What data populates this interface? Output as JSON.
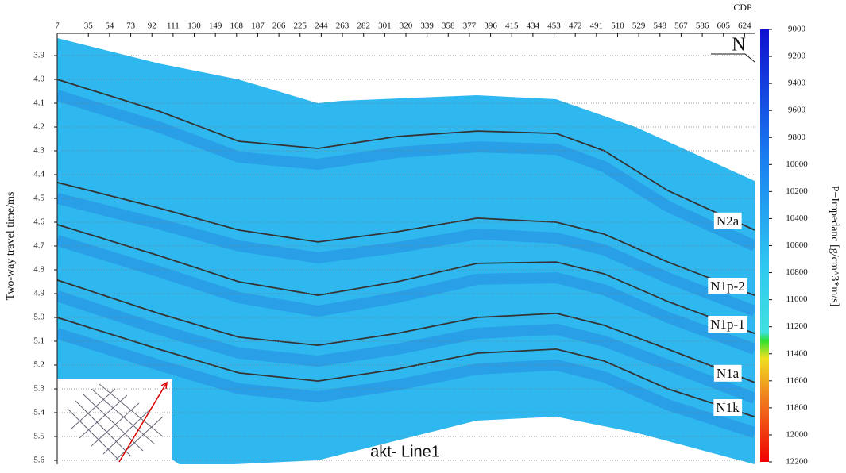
{
  "chart_data": {
    "type": "seismic-section",
    "x_label": "CDP",
    "y_label": "Two-way travel time/ms",
    "colorbar_label": "P−Impedanc [g/cm^3*m/s]",
    "annotations": [
      "akt- Line1",
      "N"
    ],
    "xlim": [
      7,
      633
    ],
    "xticks": [
      7,
      35,
      54,
      73,
      92,
      111,
      130,
      149,
      168,
      187,
      206,
      225,
      244,
      263,
      282,
      301,
      320,
      339,
      358,
      377,
      396,
      415,
      434,
      453,
      472,
      491,
      510,
      529,
      548,
      567,
      586,
      605,
      624
    ],
    "ylim": [
      3.8,
      5.62
    ],
    "y_inverted": true,
    "yticks": [
      3.9,
      {
        "value": 4,
        "label": "4.0"
      },
      4.1,
      4.2,
      4.3,
      4.4,
      4.5,
      4.6,
      4.7,
      4.8,
      4.9,
      {
        "value": 5,
        "label": "5.0"
      },
      5.1,
      5.2,
      5.3,
      5.4,
      5.5,
      5.6
    ],
    "grid": true,
    "clim": [
      9000,
      12200
    ],
    "cticks": [
      9000,
      9200,
      9400,
      9600,
      9800,
      10000,
      10200,
      10400,
      10600,
      10800,
      11000,
      11200,
      11400,
      11600,
      11800,
      12000,
      12200
    ],
    "x": [
      7,
      98,
      170,
      241,
      312,
      384,
      455,
      498,
      555,
      633
    ],
    "series": [
      {
        "name": "N2a",
        "color": "#333333",
        "values": [
          4.0,
          4.133,
          4.26,
          4.29,
          4.24,
          4.217,
          4.227,
          4.3,
          4.467,
          4.633
        ]
      },
      {
        "name": "N1p-2",
        "color": "#333333",
        "values": [
          4.433,
          4.54,
          4.633,
          4.683,
          4.64,
          4.583,
          4.6,
          4.65,
          4.767,
          4.907
        ]
      },
      {
        "name": "N1p-1",
        "color": "#333333",
        "values": [
          4.61,
          4.74,
          4.85,
          4.907,
          4.85,
          4.773,
          4.767,
          4.817,
          4.933,
          5.067
        ]
      },
      {
        "name": "N1a",
        "color": "#333333",
        "values": [
          4.843,
          4.983,
          5.083,
          5.117,
          5.067,
          5.0,
          4.983,
          5.033,
          5.133,
          5.273
        ]
      },
      {
        "name": "N1k",
        "color": "#333333",
        "values": [
          5.0,
          5.133,
          5.233,
          5.267,
          5.217,
          5.15,
          5.133,
          5.183,
          5.3,
          5.417
        ]
      }
    ]
  }
}
